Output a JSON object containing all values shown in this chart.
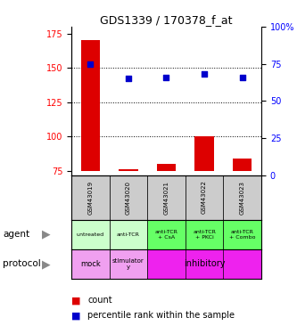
{
  "title": "GDS1339 / 170378_f_at",
  "samples": [
    "GSM43019",
    "GSM43020",
    "GSM43021",
    "GSM43022",
    "GSM43023"
  ],
  "counts": [
    170,
    76,
    80,
    100,
    84
  ],
  "percentiles": [
    75,
    65,
    66,
    68,
    66
  ],
  "ylim_left": [
    72,
    180
  ],
  "yticks_left": [
    75,
    100,
    125,
    150,
    175
  ],
  "ylim_right": [
    0,
    100
  ],
  "yticks_right": [
    0,
    25,
    50,
    75,
    100
  ],
  "bar_color": "#dd0000",
  "dot_color": "#0000cc",
  "bar_base": 75,
  "agent_labels": [
    "untreated",
    "anti-TCR",
    "anti-TCR\n+ CsA",
    "anti-TCR\n+ PKCi",
    "anti-TCR\n+ Combo"
  ],
  "agent_colors": [
    "#ccffcc",
    "#ccffcc",
    "#66ff66",
    "#66ff66",
    "#66ff66"
  ],
  "protocol_mock_color": "#ee88ee",
  "protocol_stim_color": "#ee88ee",
  "protocol_inhib_color": "#ee22ee",
  "sample_bg": "#cccccc",
  "legend_count_color": "#dd0000",
  "legend_pct_color": "#0000cc",
  "grid_lines": [
    150,
    125,
    100
  ]
}
